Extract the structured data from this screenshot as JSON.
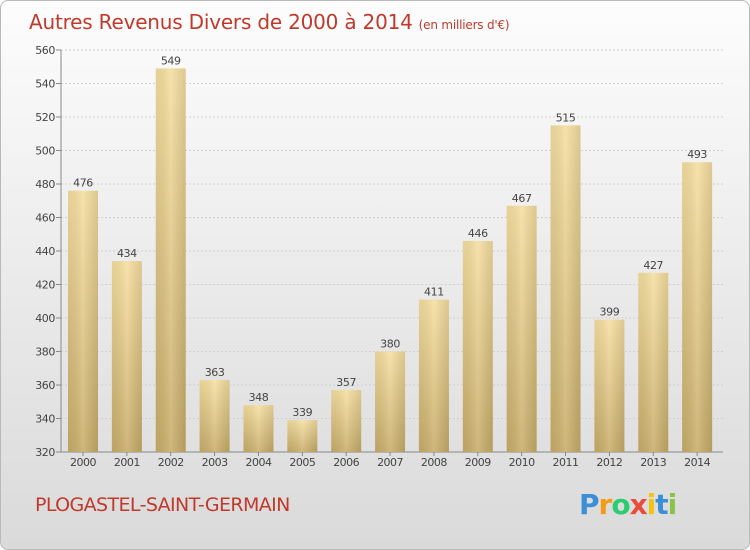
{
  "title": "Autres Revenus Divers de 2000 à 2014",
  "subtitle": "(en milliers d'€)",
  "commune": "PLOGASTEL-SAINT-GERMAIN",
  "logo": {
    "letters": [
      "P",
      "r",
      "o",
      "x",
      "i",
      "t",
      "i"
    ],
    "colors": [
      "#3a8fd6",
      "#f39c12",
      "#2ecc71",
      "#e74c3c",
      "#f1c40f",
      "#3a8fd6",
      "#8bc34a"
    ]
  },
  "colors": {
    "title": "#c0392b",
    "bar_light": "#f5dfa0",
    "bar_dark": "#c8ad6a",
    "grid": "#d0d0d0",
    "text": "#444444"
  },
  "chart_data": {
    "type": "bar",
    "categories": [
      "2000",
      "2001",
      "2002",
      "2003",
      "2004",
      "2005",
      "2006",
      "2007",
      "2008",
      "2009",
      "2010",
      "2011",
      "2012",
      "2013",
      "2014"
    ],
    "values": [
      476,
      434,
      549,
      363,
      348,
      339,
      357,
      380,
      411,
      446,
      467,
      515,
      399,
      427,
      493
    ],
    "ylim": [
      320,
      560
    ],
    "yticks": [
      320,
      340,
      360,
      380,
      400,
      420,
      440,
      460,
      480,
      500,
      520,
      540,
      560
    ],
    "grid": true,
    "data_labels": true
  }
}
